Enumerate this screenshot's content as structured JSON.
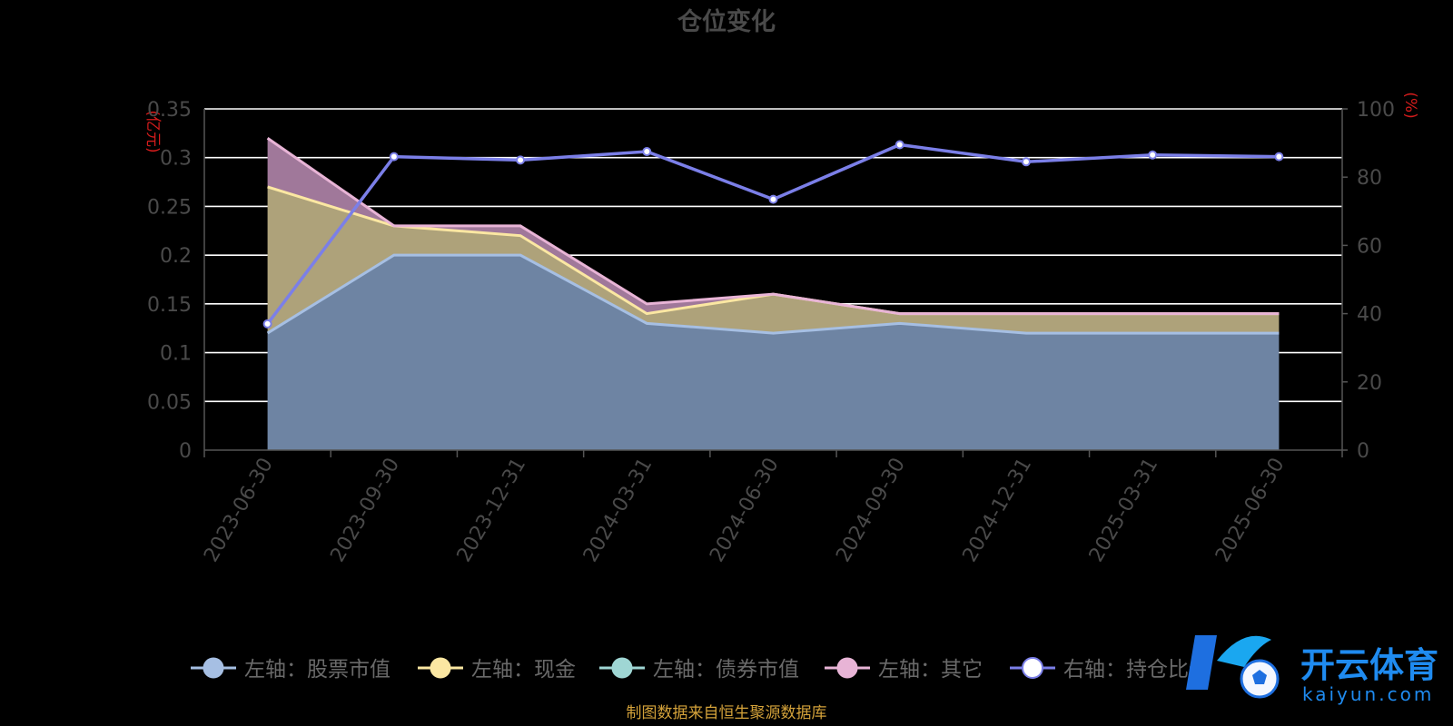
{
  "chart_data": {
    "type": "area",
    "title": "仓位变化",
    "left_axis_unit": "(亿元)",
    "right_axis_unit": "(%)",
    "categories": [
      "2023-06-30",
      "2023-09-30",
      "2023-12-31",
      "2024-03-31",
      "2024-06-30",
      "2024-09-30",
      "2024-12-31",
      "2025-03-31",
      "2025-06-30"
    ],
    "left_axis": {
      "min": 0,
      "max": 0.35,
      "ticks": [
        "0",
        "0.05",
        "0.1",
        "0.15",
        "0.2",
        "0.25",
        "0.3",
        "0.35"
      ]
    },
    "right_axis": {
      "min": 0,
      "max": 100,
      "ticks": [
        "0",
        "20",
        "40",
        "60",
        "80",
        "100"
      ]
    },
    "series": [
      {
        "name": "左轴：股票市值",
        "axis": "left",
        "color": "#a6bfe3",
        "fill": "#6e84a3",
        "cumulative": [
          0.12,
          0.2,
          0.2,
          0.13,
          0.12,
          0.13,
          0.12,
          0.12,
          0.12
        ]
      },
      {
        "name": "左轴：现金",
        "axis": "left",
        "color": "#fbe7a2",
        "fill": "#aea27a",
        "cumulative": [
          0.27,
          0.23,
          0.22,
          0.14,
          0.16,
          0.14,
          0.14,
          0.14,
          0.14
        ]
      },
      {
        "name": "左轴：债券市值",
        "axis": "left",
        "color": "#9fd6d4",
        "fill": "#7aa9aa",
        "cumulative": [
          0.27,
          0.23,
          0.22,
          0.14,
          0.16,
          0.14,
          0.14,
          0.14,
          0.14
        ]
      },
      {
        "name": "左轴：其它",
        "axis": "left",
        "color": "#e8b4d6",
        "fill": "#a0789a",
        "cumulative": [
          0.32,
          0.23,
          0.23,
          0.15,
          0.16,
          0.14,
          0.14,
          0.14,
          0.14
        ]
      },
      {
        "name": "右轴：持仓比例",
        "axis": "right",
        "color": "#7b7fe8",
        "values": [
          37,
          86,
          85,
          87.5,
          73.5,
          89.5,
          84.5,
          86.5,
          86
        ]
      }
    ],
    "grid": true,
    "legend_position": "bottom"
  },
  "footer": {
    "source": "制图数据来自恒生聚源数据库"
  },
  "watermark": {
    "text_cn": "开云体育",
    "text_en": "kaiyun.com"
  }
}
